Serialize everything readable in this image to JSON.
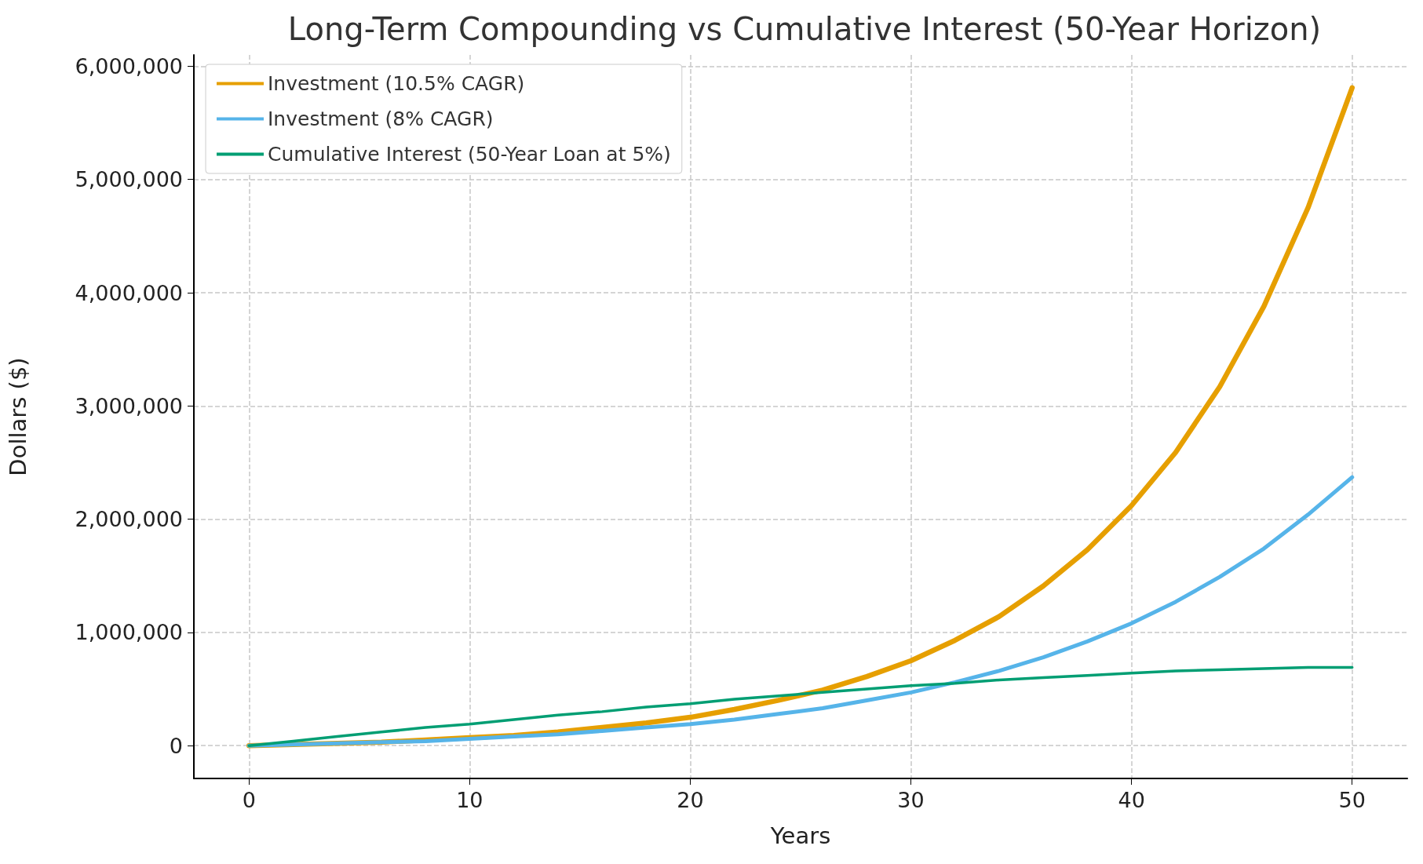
{
  "chart_data": {
    "type": "line",
    "title": "Long-Term Compounding vs Cumulative Interest (50-Year Horizon)",
    "xlabel": "Years",
    "ylabel": "Dollars ($)",
    "x": [
      0,
      2,
      4,
      6,
      8,
      10,
      12,
      14,
      16,
      18,
      20,
      22,
      24,
      26,
      28,
      30,
      32,
      34,
      36,
      38,
      40,
      42,
      44,
      46,
      48,
      50
    ],
    "series": [
      {
        "name": "Investment (10.5% CAGR)",
        "color": "#e69f00",
        "values": [
          0,
          10000,
          20000,
          30000,
          50000,
          70000,
          90000,
          120000,
          160000,
          200000,
          250000,
          320000,
          400000,
          490000,
          610000,
          750000,
          930000,
          1140000,
          1410000,
          1730000,
          2120000,
          2590000,
          3170000,
          3880000,
          4750000,
          5810000
        ]
      },
      {
        "name": "Investment (8% CAGR)",
        "color": "#56b4e9",
        "values": [
          0,
          10000,
          20000,
          30000,
          40000,
          60000,
          80000,
          100000,
          130000,
          160000,
          190000,
          230000,
          280000,
          330000,
          400000,
          470000,
          560000,
          660000,
          780000,
          920000,
          1080000,
          1270000,
          1490000,
          1740000,
          2040000,
          2370000
        ]
      },
      {
        "name": "Cumulative Interest (50-Year Loan at 5%)",
        "color": "#009e73",
        "values": [
          0,
          40000,
          80000,
          120000,
          160000,
          190000,
          230000,
          270000,
          300000,
          340000,
          370000,
          410000,
          440000,
          470000,
          500000,
          530000,
          550000,
          580000,
          600000,
          620000,
          640000,
          660000,
          670000,
          680000,
          690000,
          690000
        ]
      }
    ],
    "xlim": [
      -2.5,
      52.5
    ],
    "xticks": [
      0,
      10,
      20,
      30,
      40,
      50
    ],
    "ylim": [
      -290000,
      6100000
    ],
    "yticks": [
      {
        "value": 0,
        "label": "0"
      },
      {
        "value": 1000000,
        "label": "1,000,000"
      },
      {
        "value": 2000000,
        "label": "2,000,000"
      },
      {
        "value": 3000000,
        "label": "3,000,000"
      },
      {
        "value": 4000000,
        "label": "4,000,000"
      },
      {
        "value": 5000000,
        "label": "5,000,000"
      },
      {
        "value": 6000000,
        "label": "6,000,000"
      }
    ],
    "grid": true,
    "legend": "top left",
    "marker": "none",
    "line_style": "solid"
  }
}
